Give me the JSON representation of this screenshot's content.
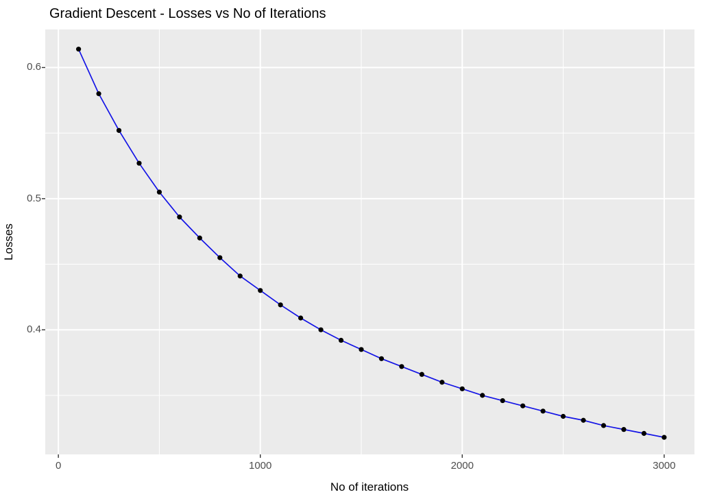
{
  "page": {
    "background": "#FFFFFF"
  },
  "chart_data": {
    "type": "line",
    "title": "Gradient Descent - Losses vs No of Iterations",
    "xlabel": "No of iterations",
    "ylabel": "Losses",
    "legend": "none",
    "grid": "white major and minor gridlines on grey panel",
    "xlim": [
      -65,
      3150
    ],
    "ylim": [
      0.305,
      0.629
    ],
    "x_ticks": {
      "major": [
        0,
        1000,
        2000,
        3000
      ],
      "labels": [
        "0",
        "1000",
        "2000",
        "3000"
      ],
      "minor": [
        500,
        1500,
        2500
      ]
    },
    "y_ticks": {
      "major": [
        0.6,
        0.5,
        0.4
      ],
      "labels": [
        "0.6",
        "0.5",
        "0.4"
      ],
      "minor": [
        0.55,
        0.45,
        0.35
      ]
    },
    "series": [
      {
        "name": "loss",
        "x": [
          100,
          200,
          300,
          400,
          500,
          600,
          700,
          800,
          900,
          1000,
          1100,
          1200,
          1300,
          1400,
          1500,
          1600,
          1700,
          1800,
          1900,
          2000,
          2100,
          2200,
          2300,
          2400,
          2500,
          2600,
          2700,
          2800,
          2900,
          3000
        ],
        "y": [
          0.614,
          0.58,
          0.552,
          0.527,
          0.505,
          0.486,
          0.47,
          0.455,
          0.441,
          0.43,
          0.419,
          0.409,
          0.4,
          0.392,
          0.385,
          0.378,
          0.372,
          0.366,
          0.36,
          0.355,
          0.35,
          0.346,
          0.342,
          0.338,
          0.334,
          0.331,
          0.327,
          0.324,
          0.321,
          0.318
        ]
      }
    ],
    "style": {
      "panel_bg": "#EBEBEB",
      "grid_color": "#FFFFFF",
      "line_color": "#1414E6",
      "point_color": "#000000",
      "tick_label_color": "#4D4D4D",
      "tick_mark_color": "#333333",
      "title_color": "#000000",
      "axis_title_color": "#000000"
    }
  }
}
